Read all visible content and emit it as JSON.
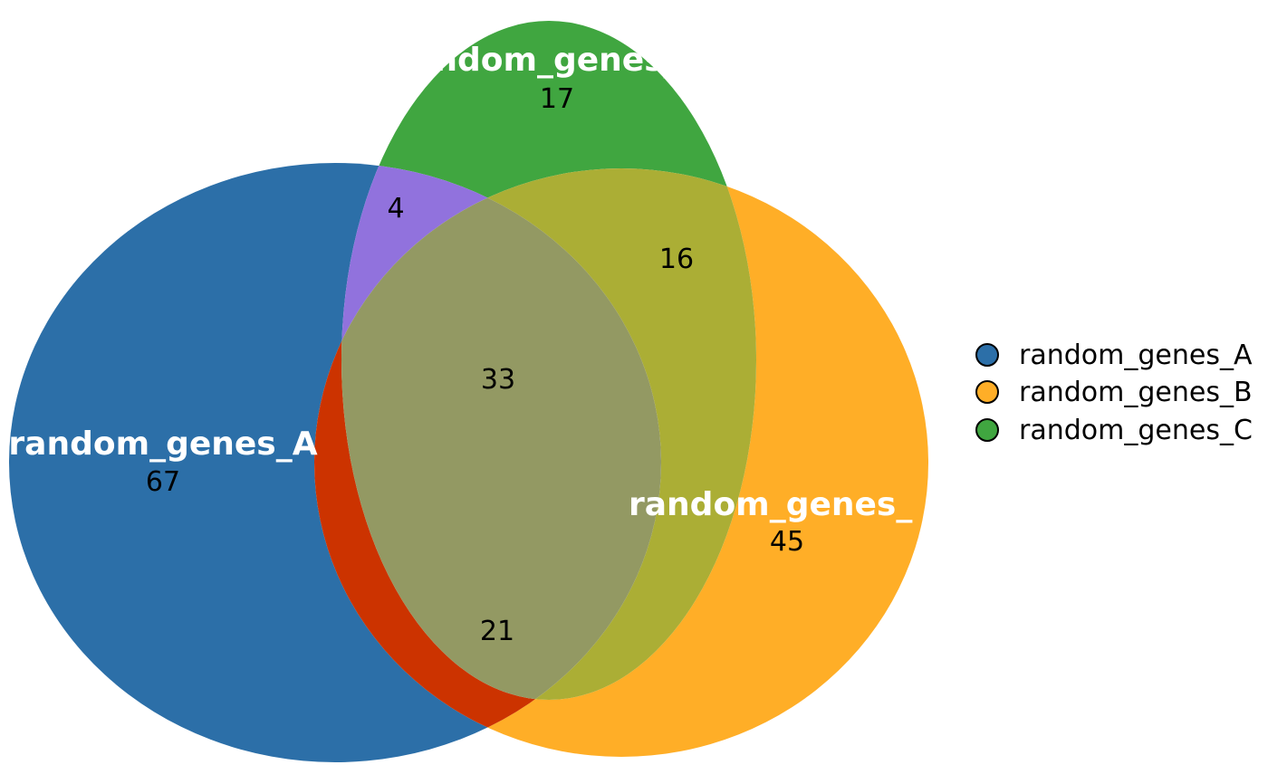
{
  "diagram": {
    "type": "venn",
    "sets": [
      {
        "id": "A",
        "name": "random_genes_A",
        "label": "random_genes_A",
        "color": "#2C6FA8"
      },
      {
        "id": "B",
        "name": "random_genes_B",
        "label": "random_genes_",
        "color": "#FFAE27"
      },
      {
        "id": "C",
        "name": "random_genes_C",
        "label": "ndom_genes_",
        "color": "#40A640"
      }
    ],
    "regions": [
      {
        "sets": [
          "A"
        ],
        "count": "67",
        "color": "#2C6FA8"
      },
      {
        "sets": [
          "B"
        ],
        "count": "45",
        "color": "#FFAE27"
      },
      {
        "sets": [
          "C"
        ],
        "count": "17",
        "color": "#40A640"
      },
      {
        "sets": [
          "A",
          "C"
        ],
        "count": "4",
        "color": "#9172DD"
      },
      {
        "sets": [
          "B",
          "C"
        ],
        "count": "16",
        "color": "#ABAE35"
      },
      {
        "sets": [
          "A",
          "B"
        ],
        "count": "21",
        "color": "#CC3300"
      },
      {
        "sets": [
          "A",
          "B",
          "C"
        ],
        "count": "33",
        "color": "#939963"
      }
    ],
    "legend": {
      "position": "right",
      "items": [
        {
          "label": "random_genes_A",
          "color": "#2C6FA8"
        },
        {
          "label": "random_genes_B",
          "color": "#FFAE27"
        },
        {
          "label": "random_genes_C",
          "color": "#40A640"
        }
      ]
    }
  }
}
